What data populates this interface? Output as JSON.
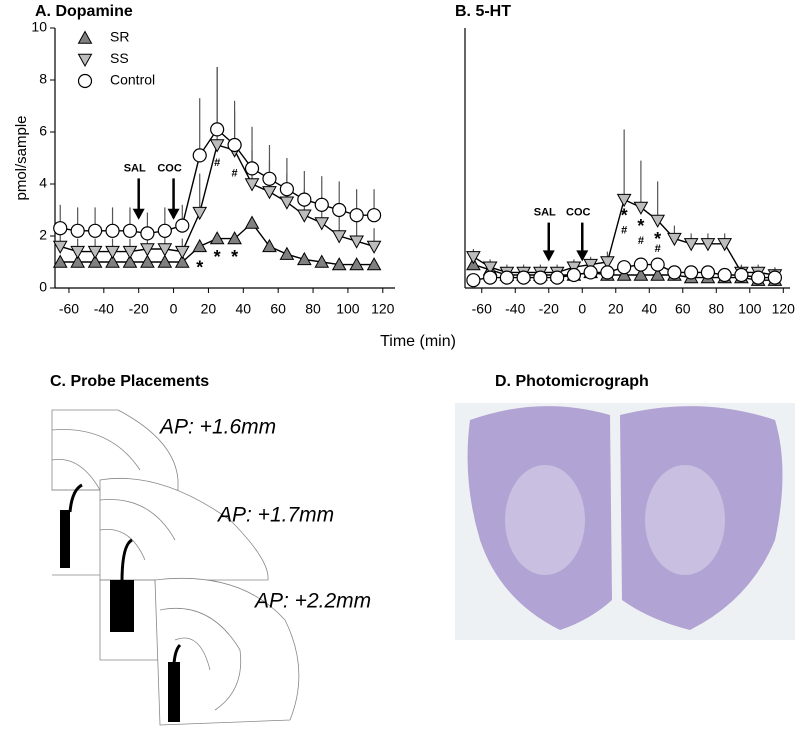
{
  "chart_data": [
    {
      "type": "line",
      "title": "A. Dopamine",
      "y_label": "pmol/sample",
      "x_label": "Time (min)",
      "x": [
        -65,
        -55,
        -45,
        -35,
        -25,
        -15,
        -5,
        5,
        15,
        25,
        35,
        45,
        55,
        65,
        75,
        85,
        95,
        105,
        115
      ],
      "xlim": [
        -68,
        127
      ],
      "xticks": [
        -60,
        -40,
        -20,
        0,
        20,
        40,
        60,
        80,
        100,
        120
      ],
      "ylim": [
        0,
        10
      ],
      "yticks": [
        0,
        2,
        4,
        6,
        8,
        10
      ],
      "legend": "upper left",
      "series": [
        {
          "name": "SR",
          "color": "#808080",
          "marker": "triangle-up",
          "values": [
            1.0,
            1.0,
            1.0,
            1.0,
            1.0,
            1.0,
            1.0,
            1.0,
            1.6,
            1.9,
            1.9,
            2.5,
            1.6,
            1.3,
            1.1,
            1.0,
            0.9,
            0.9,
            0.9
          ]
        },
        {
          "name": "SS",
          "color": "#bdbdbd",
          "marker": "triangle-down",
          "values": [
            1.6,
            1.4,
            1.4,
            1.4,
            1.4,
            1.5,
            1.5,
            1.4,
            2.9,
            5.5,
            5.3,
            4.0,
            3.7,
            3.3,
            2.8,
            2.5,
            2.0,
            1.8,
            1.6
          ],
          "errors": [
            0.5,
            0.5,
            0.5,
            0.5,
            0.5,
            0.5,
            0.5,
            0.5,
            1.5,
            3.0,
            1.5,
            1.3,
            1.2,
            1.1,
            1.0,
            1.0,
            0.9,
            0.8,
            0.7
          ]
        },
        {
          "name": "Control",
          "color": "#ffffff",
          "marker": "circle",
          "values": [
            2.3,
            2.2,
            2.2,
            2.2,
            2.2,
            2.1,
            2.2,
            2.4,
            5.1,
            6.1,
            5.5,
            4.6,
            4.2,
            3.8,
            3.4,
            3.2,
            3.0,
            2.8,
            2.8
          ],
          "errors": [
            0.9,
            0.9,
            0.9,
            0.9,
            0.9,
            0.8,
            0.9,
            0.8,
            2.2,
            2.4,
            1.7,
            1.6,
            1.3,
            1.2,
            1.1,
            1.1,
            1.1,
            1.0,
            1.0
          ]
        }
      ],
      "annotations": [
        {
          "text": "SAL",
          "x": -20,
          "y": 4.6,
          "y_end": 2.7
        },
        {
          "text": "COC",
          "x": 0,
          "y": 4.6,
          "y_end": 2.7
        }
      ],
      "marks": [
        {
          "text": "*",
          "x": 15,
          "y": 0.9
        },
        {
          "text": "*",
          "x": 25,
          "y": 1.3
        },
        {
          "text": "*",
          "x": 35,
          "y": 1.3
        },
        {
          "text": "#",
          "x": 25,
          "y": 4.8
        },
        {
          "text": "#",
          "x": 35,
          "y": 4.4
        }
      ]
    },
    {
      "type": "line",
      "title": "B. 5-HT",
      "x": [
        -65,
        -55,
        -45,
        -35,
        -25,
        -15,
        -5,
        5,
        15,
        25,
        35,
        45,
        55,
        65,
        75,
        85,
        95,
        105,
        115
      ],
      "xlim": [
        -70,
        124
      ],
      "xticks": [
        -60,
        -40,
        -20,
        0,
        20,
        40,
        60,
        80,
        100,
        120
      ],
      "ylim": [
        0,
        10
      ],
      "series": [
        {
          "color": "#808080",
          "marker": "triangle-up",
          "values": [
            0.9,
            0.7,
            0.5,
            0.5,
            0.5,
            0.5,
            0.5,
            0.6,
            0.5,
            0.5,
            0.5,
            0.5,
            0.5,
            0.4,
            0.4,
            0.4,
            0.4,
            0.3,
            0.3
          ]
        },
        {
          "color": "#bdbdbd",
          "marker": "triangle-down",
          "values": [
            1.2,
            0.8,
            0.6,
            0.6,
            0.6,
            0.6,
            0.8,
            0.9,
            1.0,
            3.4,
            3.1,
            2.6,
            1.9,
            1.7,
            1.7,
            1.7,
            0.6,
            0.6,
            0.5
          ],
          "errors": [
            0.3,
            0.3,
            0.3,
            0.3,
            0.3,
            0.3,
            0.3,
            0.3,
            0.4,
            2.7,
            1.8,
            1.5,
            0.5,
            0.4,
            0.4,
            0.4,
            0.3,
            0.3,
            0.3
          ]
        },
        {
          "color": "#ffffff",
          "marker": "circle",
          "values": [
            0.3,
            0.4,
            0.4,
            0.4,
            0.4,
            0.4,
            0.5,
            0.6,
            0.6,
            0.8,
            0.9,
            0.9,
            0.6,
            0.6,
            0.6,
            0.5,
            0.5,
            0.4,
            0.4
          ]
        }
      ],
      "annotations": [
        {
          "text": "SAL",
          "x": -20,
          "y": 2.9,
          "y_end": 1.1
        },
        {
          "text": "COC",
          "x": 0,
          "y": 2.9,
          "y_end": 1.1
        }
      ],
      "marks": [
        {
          "text": "*",
          "x": 25,
          "y": 2.9
        },
        {
          "text": "*",
          "x": 35,
          "y": 2.5
        },
        {
          "text": "*",
          "x": 45,
          "y": 2.0
        },
        {
          "text": "#",
          "x": 25,
          "y": 2.2
        },
        {
          "text": "#",
          "x": 35,
          "y": 1.8
        },
        {
          "text": "#",
          "x": 45,
          "y": 1.5
        }
      ]
    }
  ],
  "panels": [
    {
      "title": "C. Probe Placements",
      "labels": [
        "AP: +1.6mm",
        "AP: +1.7mm",
        "AP: +2.2mm"
      ]
    },
    {
      "title": "D. Photomicrograph"
    }
  ]
}
